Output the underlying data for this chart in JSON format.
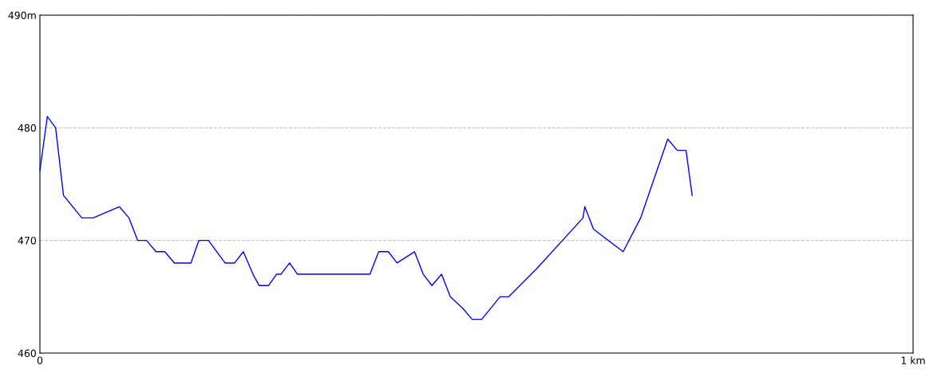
{
  "chart_data": {
    "type": "line",
    "x": [
      0,
      0.0085,
      0.018,
      0.027,
      0.048,
      0.061,
      0.091,
      0.102,
      0.112,
      0.122,
      0.133,
      0.143,
      0.154,
      0.173,
      0.182,
      0.193,
      0.212,
      0.223,
      0.233,
      0.244,
      0.251,
      0.262,
      0.271,
      0.276,
      0.286,
      0.295,
      0.378,
      0.388,
      0.399,
      0.409,
      0.429,
      0.439,
      0.449,
      0.46,
      0.47,
      0.484,
      0.495,
      0.506,
      0.527,
      0.537,
      0.569,
      0.622,
      0.624,
      0.634,
      0.668,
      0.688,
      0.719,
      0.73,
      0.74,
      0.747
    ],
    "series": [
      {
        "color": "#0000ff",
        "values": [
          476.2,
          481,
          480,
          474,
          472,
          472,
          473,
          472,
          470,
          470,
          469,
          469,
          468,
          468,
          470,
          470,
          468,
          468,
          469,
          467,
          466,
          466,
          467,
          467,
          468,
          467,
          467,
          469,
          469,
          468,
          469,
          467,
          466,
          467,
          465,
          464,
          463,
          463,
          465,
          465,
          467.5,
          472,
          473,
          471,
          469,
          472,
          479,
          478,
          478,
          474
        ]
      }
    ],
    "xlim": [
      0,
      1
    ],
    "ylim": [
      460,
      490
    ],
    "xticks": [
      0,
      {
        "value": 1,
        "label": "1 km"
      }
    ],
    "yticks": [
      460,
      470,
      480,
      {
        "value": 490,
        "label": "490m"
      }
    ],
    "grid": "y",
    "line_style": "solid",
    "marker": "none"
  }
}
